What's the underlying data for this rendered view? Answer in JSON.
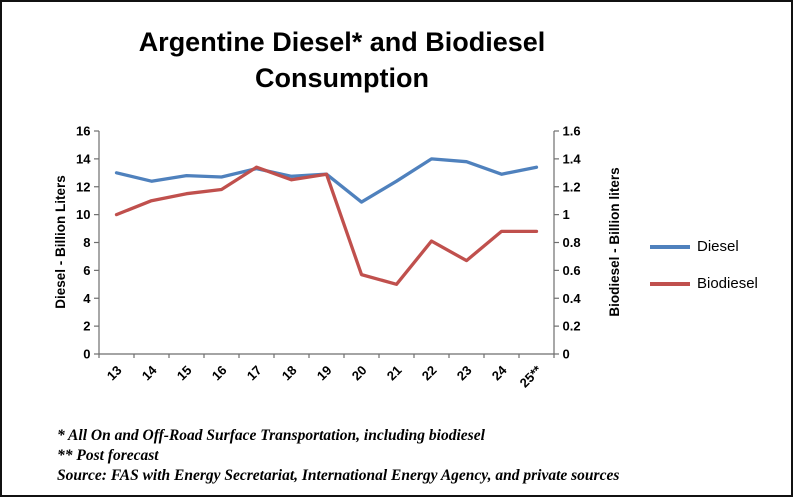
{
  "title": "Argentine Diesel* and Biodiesel Consumption",
  "chart_data": {
    "type": "line",
    "title": "Argentine Diesel* and Biodiesel Consumption",
    "categories": [
      "13",
      "14",
      "15",
      "16",
      "17",
      "18",
      "19",
      "20",
      "21",
      "22",
      "23",
      "24",
      "25**"
    ],
    "series": [
      {
        "name": "Diesel",
        "axis": "left",
        "color": "#4F81BD",
        "values": [
          13.0,
          12.4,
          12.8,
          12.7,
          13.3,
          12.75,
          12.9,
          10.9,
          12.4,
          14.0,
          13.8,
          12.9,
          13.4
        ]
      },
      {
        "name": "Biodiesel",
        "axis": "right",
        "color": "#C0504D",
        "values": [
          1.0,
          1.1,
          1.15,
          1.18,
          1.34,
          1.25,
          1.29,
          0.57,
          0.5,
          0.81,
          0.67,
          0.88,
          0.88
        ]
      }
    ],
    "left_axis": {
      "label": "Diesel - Billion Liters",
      "min": 0,
      "max": 16,
      "step": 2
    },
    "right_axis": {
      "label": "Biodiesel - Billion liters",
      "min": 0,
      "max": 1.6,
      "step": 0.2
    },
    "legend_position": "right",
    "grid": false
  },
  "footnotes": [
    "* All On and Off-Road Surface Transportation, including biodiesel",
    "** Post forecast",
    "Source: FAS with Energy Secretariat, International Energy Agency, and private sources"
  ]
}
